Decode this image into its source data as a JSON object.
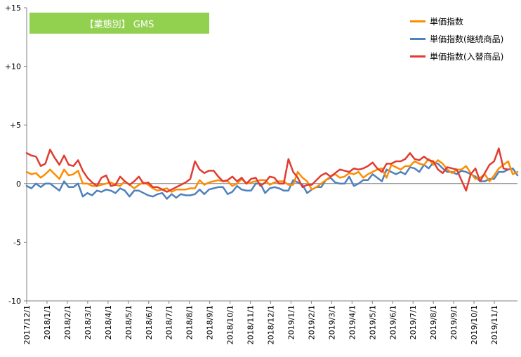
{
  "badge": {
    "text": "【業態別】 GMS"
  },
  "chart_data": {
    "type": "line",
    "ylim": [
      -10,
      15
    ],
    "y_ticks": [
      15,
      10,
      5,
      0,
      -5,
      -10
    ],
    "y_tick_labels": [
      "+15",
      "+10",
      "+5",
      "0",
      "-5",
      "-10"
    ],
    "x_tick_labels": [
      "2017/12/1",
      "2018/1/1",
      "2018/2/1",
      "2018/3/1",
      "2018/4/1",
      "2018/5/1",
      "2018/6/1",
      "2018/7/1",
      "2018/8/1",
      "2018/9/1",
      "2018/10/1",
      "2018/11/1",
      "2018/12/1",
      "2019/1/1",
      "2019/2/1",
      "2019/3/1",
      "2019/4/1",
      "2019/5/1",
      "2019/6/1",
      "2019/7/1",
      "2019/8/1",
      "2019/9/1",
      "2019/10/1",
      "2019/11/1"
    ],
    "points_per_month": 4.35,
    "legend_position": "top-right",
    "grid": false,
    "series": [
      {
        "name": "単価指数",
        "color": "#ff8c00",
        "values": [
          1.0,
          0.8,
          0.9,
          0.5,
          0.8,
          1.2,
          0.8,
          0.4,
          1.2,
          0.7,
          0.8,
          1.1,
          0.0,
          0.0,
          -0.2,
          -0.2,
          -0.1,
          0.0,
          0.1,
          -0.1,
          -0.2,
          0.2,
          -0.1,
          -0.4,
          -0.1,
          0.1,
          -0.1,
          -0.4,
          -0.6,
          -0.5,
          -0.4,
          -0.7,
          -0.5,
          -0.5,
          -0.5,
          -0.4,
          -0.4,
          0.3,
          -0.1,
          0.1,
          0.2,
          0.3,
          0.2,
          0.2,
          -0.2,
          0.0,
          0.4,
          0.0,
          0.1,
          0.2,
          0.3,
          0.3,
          -0.1,
          0.1,
          0.2,
          0.2,
          -0.1,
          -0.1,
          1.0,
          0.5,
          0.2,
          -0.5,
          -0.3,
          0.0,
          0.3,
          0.6,
          0.8,
          0.5,
          0.6,
          0.9,
          0.8,
          1.0,
          0.5,
          0.8,
          1.0,
          1.2,
          1.3,
          0.5,
          1.6,
          1.4,
          1.2,
          1.5,
          1.5,
          1.9,
          1.7,
          1.6,
          2.1,
          1.6,
          2.0,
          1.7,
          1.2,
          0.9,
          1.2,
          1.2,
          1.5,
          0.9,
          0.4,
          0.5,
          0.8,
          0.2,
          0.7,
          1.3,
          1.6,
          1.9,
          0.8,
          1.0
        ]
      },
      {
        "name": "単価指数(継続商品)",
        "color": "#4f81bd",
        "values": [
          -0.2,
          -0.4,
          0.0,
          -0.3,
          0.0,
          0.0,
          -0.3,
          -0.6,
          0.2,
          -0.3,
          -0.3,
          0.0,
          -1.1,
          -0.8,
          -1.0,
          -0.6,
          -0.7,
          -0.5,
          -0.6,
          -0.8,
          -0.4,
          -0.6,
          -1.1,
          -0.6,
          -0.6,
          -0.8,
          -1.0,
          -1.1,
          -0.9,
          -0.8,
          -1.3,
          -0.9,
          -1.2,
          -0.9,
          -1.0,
          -1.0,
          -0.9,
          -0.5,
          -0.9,
          -0.5,
          -0.4,
          -0.3,
          -0.3,
          -0.9,
          -0.7,
          -0.2,
          -0.5,
          -0.6,
          -0.6,
          0.0,
          0.0,
          -0.8,
          -0.4,
          -0.3,
          -0.4,
          -0.6,
          -0.6,
          0.3,
          0.1,
          -0.1,
          -0.8,
          -0.5,
          -0.3,
          -0.3,
          0.3,
          0.5,
          0.1,
          0.0,
          0.0,
          0.6,
          -0.2,
          0.0,
          0.3,
          0.3,
          0.8,
          0.5,
          0.2,
          1.2,
          1.0,
          0.8,
          1.0,
          0.8,
          1.4,
          1.3,
          1.0,
          1.6,
          1.3,
          1.8,
          1.7,
          1.3,
          1.0,
          1.0,
          0.8,
          1.1,
          1.0,
          0.8,
          0.6,
          0.2,
          0.2,
          0.4,
          0.4,
          1.0,
          1.0,
          1.2,
          1.3,
          0.7
        ]
      },
      {
        "name": "単価指数(入替商品)",
        "color": "#e03c31",
        "values": [
          2.6,
          2.4,
          2.3,
          1.5,
          1.7,
          2.9,
          2.2,
          1.6,
          2.4,
          1.6,
          1.5,
          2.0,
          1.1,
          0.5,
          0.1,
          -0.2,
          0.5,
          0.7,
          -0.2,
          -0.1,
          0.6,
          0.2,
          -0.1,
          0.2,
          0.6,
          0.0,
          0.1,
          -0.3,
          -0.3,
          -0.5,
          -0.7,
          -0.5,
          -0.3,
          -0.1,
          0.1,
          0.4,
          1.9,
          1.2,
          0.9,
          1.1,
          1.1,
          0.6,
          0.2,
          0.3,
          0.6,
          0.2,
          0.5,
          0.0,
          0.4,
          0.5,
          -0.2,
          0.1,
          0.6,
          0.5,
          0.0,
          0.0,
          2.1,
          1.0,
          0.5,
          -0.3,
          -0.1,
          -0.1,
          0.3,
          0.7,
          0.9,
          0.6,
          0.9,
          1.2,
          1.1,
          1.0,
          1.3,
          1.2,
          1.3,
          1.5,
          1.8,
          1.3,
          1.0,
          1.7,
          1.7,
          1.9,
          1.9,
          2.1,
          2.6,
          2.1,
          2.0,
          2.3,
          2.0,
          1.9,
          1.2,
          0.9,
          1.4,
          1.3,
          1.2,
          0.3,
          -0.6,
          0.8,
          1.3,
          0.2,
          0.9,
          1.6,
          1.9,
          3.0,
          1.3,
          1.2
        ]
      }
    ]
  }
}
